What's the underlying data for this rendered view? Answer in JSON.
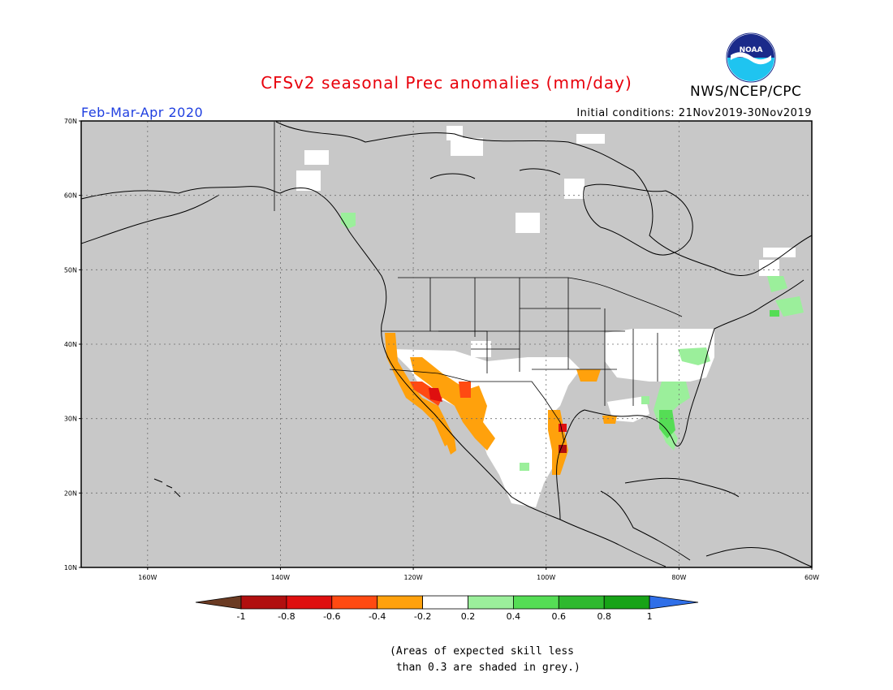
{
  "header": {
    "title": "CFSv2 seasonal Prec anomalies (mm/day)",
    "period": "Feb-Mar-Apr 2020",
    "initial_conditions": "Initial conditions: 21Nov2019-30Nov2019",
    "agency": "NWS/NCEP/CPC",
    "logo_text": "NOAA"
  },
  "colors": {
    "title": "#e8000b",
    "period": "#1f3fe0",
    "grey_mask": "#c8c8c8",
    "land_white": "#ffffff"
  },
  "map": {
    "lat_labels": [
      "70N",
      "60N",
      "50N",
      "40N",
      "30N",
      "20N",
      "10N"
    ],
    "lon_labels": [
      "160W",
      "140W",
      "120W",
      "100W",
      "80W",
      "60W"
    ]
  },
  "colorbar": {
    "labels": [
      "-1",
      "-0.8",
      "-0.6",
      "-0.4",
      "-0.2",
      "0.2",
      "0.4",
      "0.6",
      "0.8",
      "1"
    ],
    "colors": [
      "#6b3b23",
      "#b10f0f",
      "#df0f0f",
      "#ff4a12",
      "#ffa10c",
      "#ffffff",
      "#9bef9b",
      "#55dd55",
      "#2fb92f",
      "#17a317",
      "#2f6fe8"
    ]
  },
  "footnote": {
    "line1": "(Areas of expected skill less",
    "line2": " than 0.3 are shaded in grey.)"
  }
}
